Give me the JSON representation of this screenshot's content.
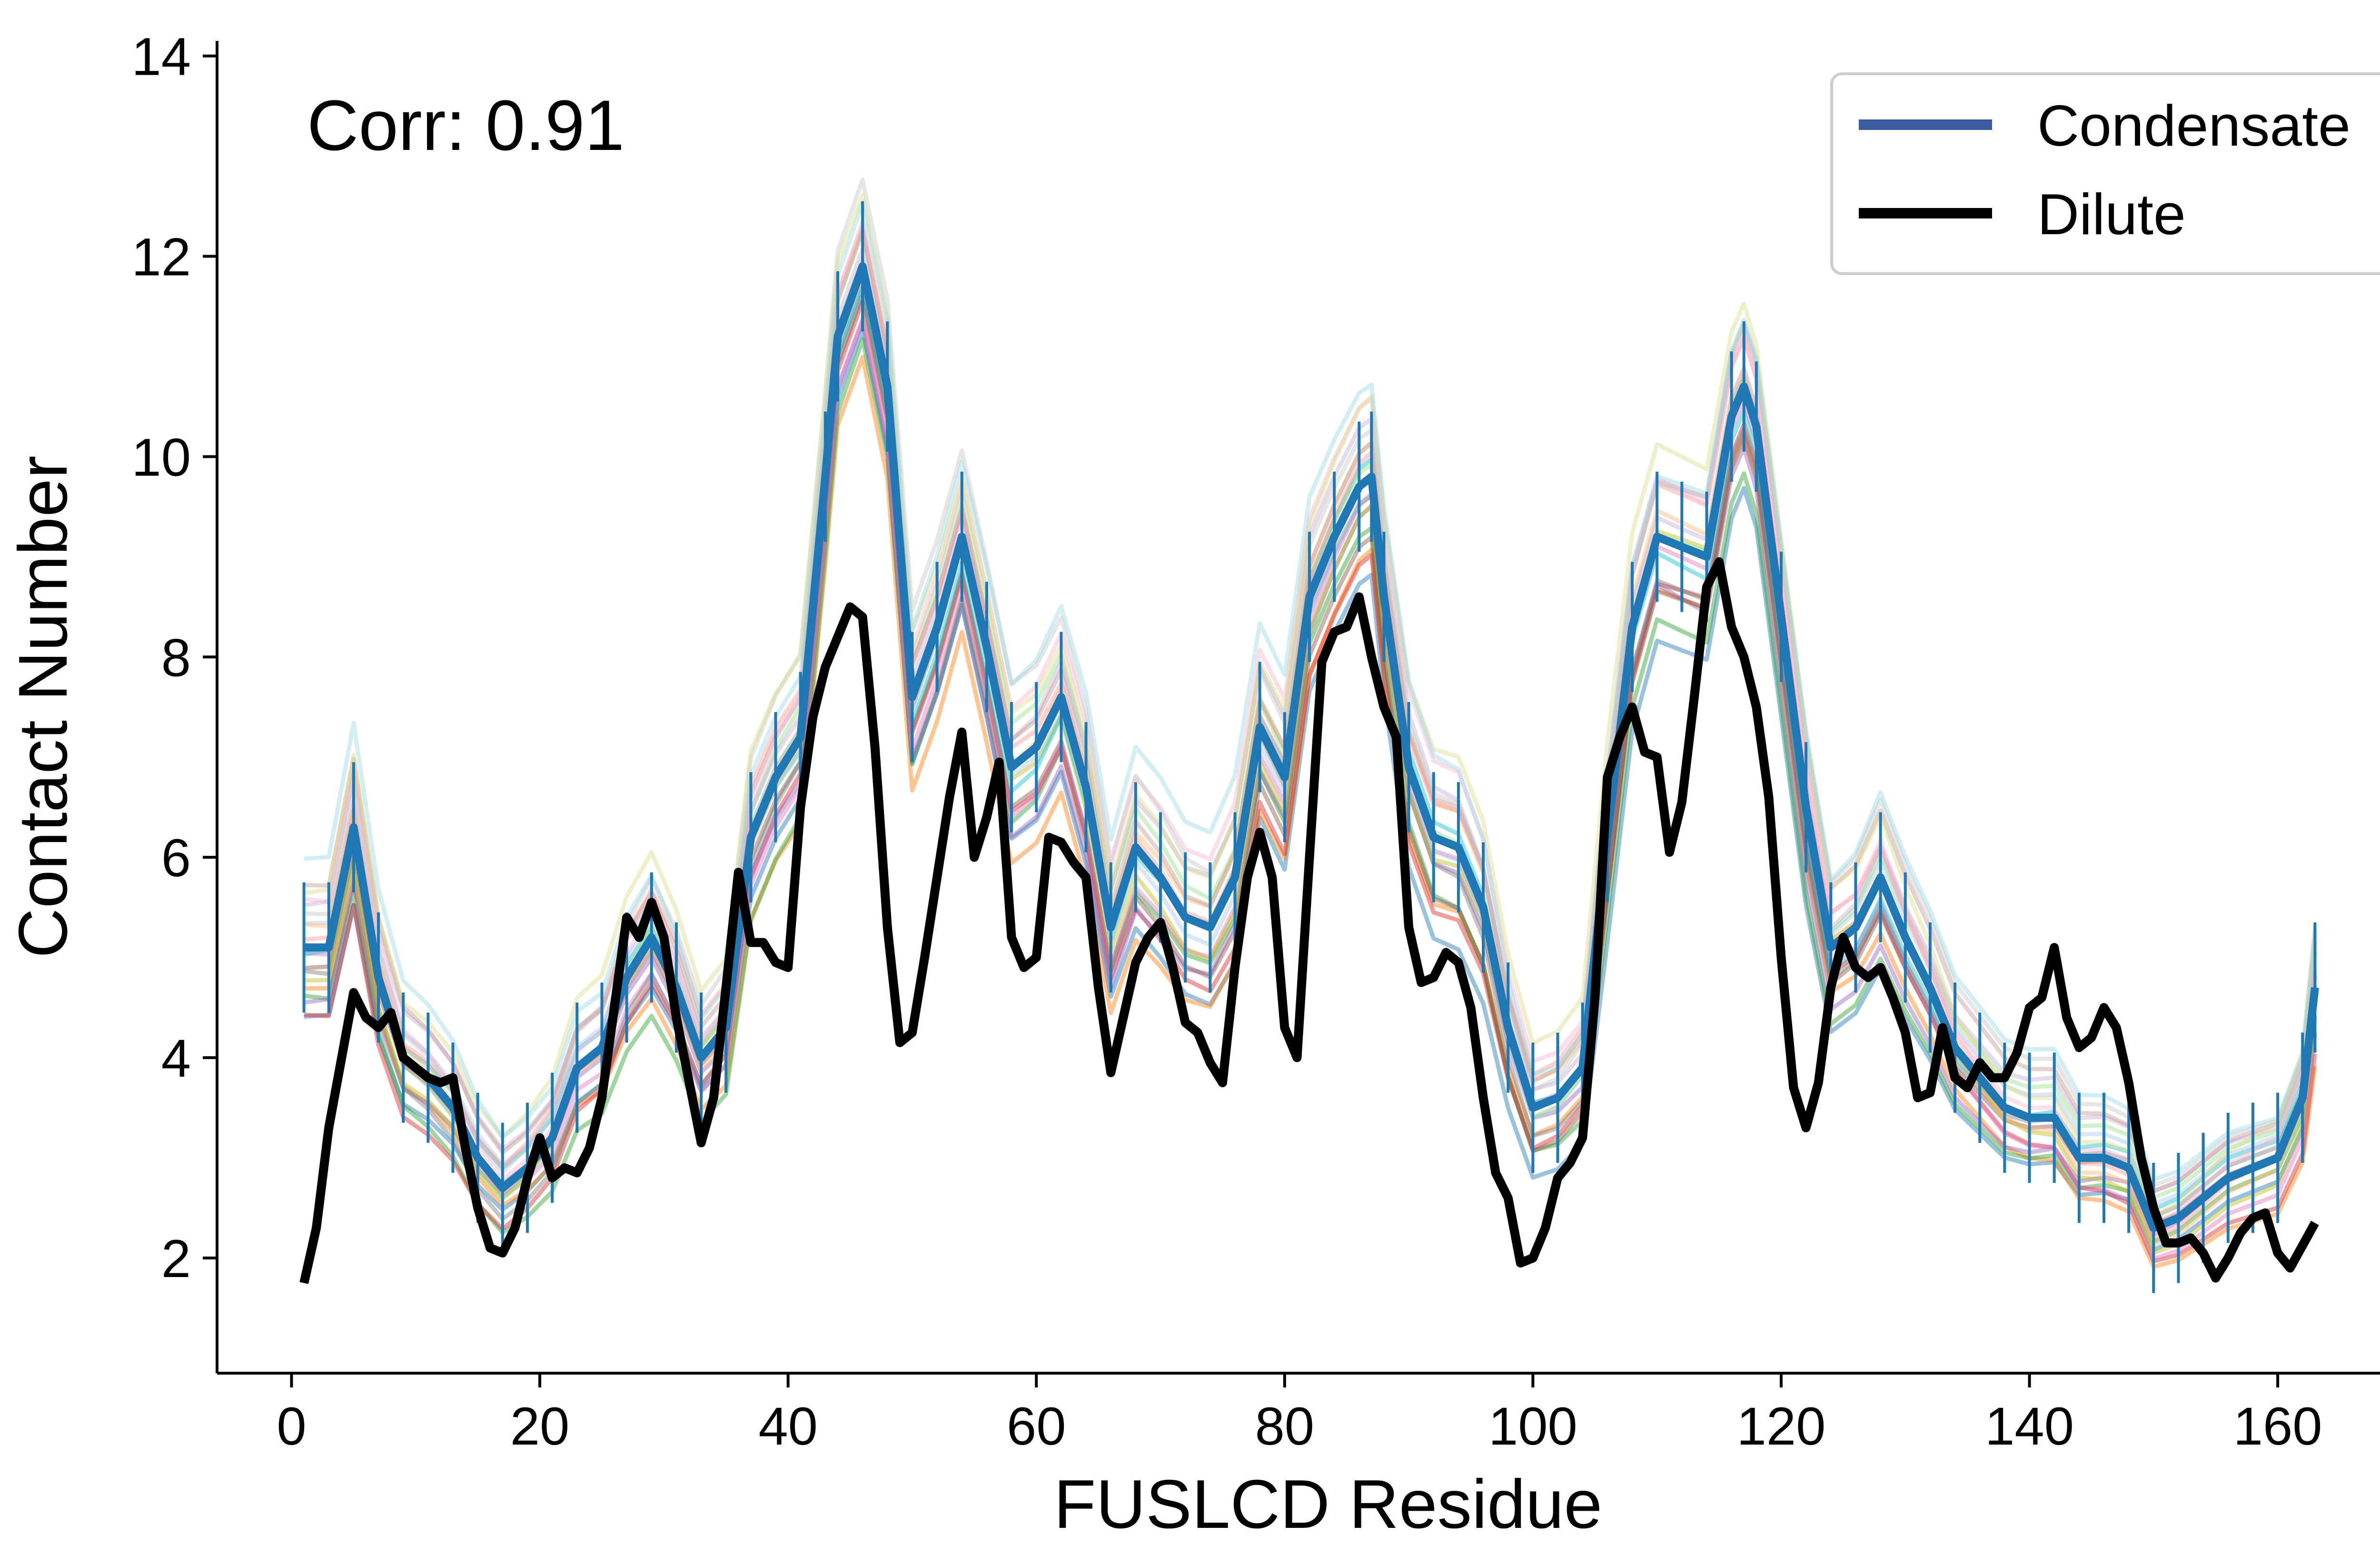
{
  "chart_data": {
    "type": "line",
    "xlabel": "FUSLCD Residue",
    "ylabel": "Contact Number",
    "xlim": [
      -6,
      171
    ],
    "ylim": [
      0.85,
      14.15
    ],
    "xticks": [
      0,
      20,
      40,
      60,
      80,
      100,
      120,
      140,
      160
    ],
    "yticks": [
      2,
      4,
      6,
      8,
      10,
      12,
      14
    ],
    "xtick_labels": [
      "0",
      "20",
      "40",
      "60",
      "80",
      "100",
      "120",
      "140",
      "160"
    ],
    "ytick_labels": [
      "2",
      "4",
      "6",
      "8",
      "10",
      "12",
      "14"
    ],
    "grid": false,
    "legend_position": "top-right",
    "annotation": "Corr: 0.91",
    "legend": [
      {
        "label": "Condensate",
        "color": "#3a5ba0"
      },
      {
        "label": "Dilute",
        "color": "#000000"
      }
    ],
    "condensate_mean": {
      "name": "Condensate",
      "color": "#1f77b4",
      "error_bar_halfwidth": 0.65,
      "x": [
        1,
        3,
        5,
        7,
        9,
        11,
        13,
        15,
        17,
        19,
        21,
        23,
        25,
        27,
        29,
        31,
        33,
        35,
        37,
        39,
        41,
        43,
        44,
        46,
        48,
        50,
        52,
        54,
        56,
        58,
        60,
        62,
        64,
        66,
        68,
        70,
        72,
        74,
        76,
        78,
        80,
        82,
        84,
        86,
        87,
        88,
        90,
        92,
        94,
        96,
        98,
        100,
        102,
        104,
        106,
        108,
        110,
        112,
        114,
        116,
        117,
        118,
        120,
        122,
        124,
        126,
        128,
        130,
        132,
        134,
        136,
        138,
        140,
        142,
        144,
        146,
        148,
        150,
        152,
        154,
        156,
        158,
        160,
        162,
        163
      ],
      "y": [
        5.1,
        5.1,
        6.3,
        4.8,
        4.0,
        3.8,
        3.5,
        3.0,
        2.7,
        2.9,
        3.2,
        3.9,
        4.1,
        4.8,
        5.2,
        4.7,
        4.0,
        4.3,
        6.2,
        6.8,
        7.2,
        9.8,
        11.2,
        11.9,
        10.7,
        7.6,
        8.3,
        9.2,
        8.1,
        6.9,
        7.1,
        7.6,
        6.7,
        5.3,
        6.1,
        5.8,
        5.4,
        5.3,
        5.8,
        7.3,
        6.8,
        8.6,
        9.2,
        9.7,
        9.8,
        8.6,
        6.9,
        6.2,
        6.1,
        5.5,
        4.3,
        3.5,
        3.6,
        3.9,
        6.2,
        8.3,
        9.2,
        9.1,
        9.0,
        10.4,
        10.7,
        10.3,
        8.4,
        6.5,
        5.1,
        5.3,
        5.8,
        5.2,
        4.7,
        4.1,
        3.8,
        3.5,
        3.4,
        3.4,
        3.0,
        3.0,
        2.9,
        2.3,
        2.4,
        2.6,
        2.8,
        2.9,
        3.0,
        3.6,
        4.7
      ]
    },
    "dilute": {
      "name": "Dilute",
      "color": "#000000",
      "x": [
        1,
        2,
        3,
        5,
        6,
        7,
        8,
        9,
        11,
        12,
        13,
        14,
        15,
        16,
        17,
        18,
        19,
        20,
        21,
        22,
        23,
        24,
        25,
        27,
        28,
        29,
        30,
        31,
        33,
        34,
        35,
        36,
        37,
        38,
        39,
        40,
        41,
        42,
        43,
        45,
        46,
        47,
        48,
        49,
        50,
        51,
        53,
        54,
        55,
        56,
        57,
        58,
        59,
        60,
        61,
        62,
        63,
        64,
        65,
        66,
        67,
        68,
        69,
        70,
        71,
        72,
        73,
        74,
        75,
        76,
        77,
        78,
        79,
        80,
        81,
        82,
        83,
        84,
        85,
        86,
        87,
        88,
        89,
        90,
        91,
        92,
        93,
        94,
        95,
        96,
        97,
        98,
        99,
        100,
        101,
        102,
        103,
        104,
        105,
        106,
        107,
        108,
        109,
        110,
        111,
        112,
        113,
        114,
        115,
        116,
        117,
        118,
        119,
        120,
        121,
        122,
        123,
        124,
        125,
        126,
        127,
        128,
        129,
        130,
        131,
        132,
        133,
        134,
        135,
        136,
        137,
        138,
        139,
        140,
        141,
        142,
        143,
        144,
        145,
        146,
        147,
        148,
        149,
        150,
        151,
        152,
        153,
        154,
        155,
        156,
        157,
        158,
        159,
        160,
        161,
        163
      ],
      "y": [
        1.75,
        2.3,
        3.3,
        4.65,
        4.4,
        4.3,
        4.45,
        4.0,
        3.8,
        3.75,
        3.8,
        3.1,
        2.5,
        2.1,
        2.05,
        2.3,
        2.8,
        3.2,
        2.8,
        2.9,
        2.85,
        3.1,
        3.6,
        5.4,
        5.2,
        5.55,
        5.2,
        4.4,
        3.15,
        3.6,
        4.7,
        5.85,
        5.15,
        5.15,
        4.95,
        4.9,
        6.5,
        7.4,
        7.9,
        8.5,
        8.4,
        7.1,
        5.3,
        4.15,
        4.25,
        5.0,
        6.6,
        7.25,
        6.0,
        6.4,
        6.95,
        5.2,
        4.9,
        5.0,
        6.2,
        6.15,
        5.95,
        5.8,
        4.7,
        3.85,
        4.4,
        4.95,
        5.2,
        5.35,
        4.9,
        4.35,
        4.25,
        3.95,
        3.75,
        4.9,
        5.8,
        6.25,
        5.8,
        4.3,
        4.0,
        6.0,
        7.95,
        8.25,
        8.3,
        8.6,
        8.0,
        7.5,
        7.2,
        5.3,
        4.75,
        4.8,
        5.05,
        4.95,
        4.5,
        3.6,
        2.85,
        2.6,
        1.95,
        2.0,
        2.3,
        2.8,
        2.95,
        3.2,
        4.6,
        6.8,
        7.2,
        7.5,
        7.05,
        7.0,
        6.05,
        6.55,
        7.6,
        8.7,
        8.95,
        8.3,
        8.0,
        7.5,
        6.6,
        5.0,
        3.7,
        3.3,
        3.75,
        4.7,
        5.2,
        4.9,
        4.8,
        4.9,
        4.6,
        4.25,
        3.6,
        3.65,
        4.3,
        3.8,
        3.7,
        3.95,
        3.8,
        3.8,
        4.05,
        4.5,
        4.6,
        5.1,
        4.4,
        4.1,
        4.2,
        4.5,
        4.3,
        3.75,
        3.0,
        2.5,
        2.15,
        2.15,
        2.2,
        2.05,
        1.8,
        2.0,
        2.25,
        2.4,
        2.45,
        2.05,
        1.9,
        2.35
      ]
    },
    "replicate_count": 20,
    "replicate_colors": [
      "#1f77b4",
      "#ff7f0e",
      "#2ca02c",
      "#d62728",
      "#9467bd",
      "#8c564b",
      "#e377c2",
      "#7f7f7f",
      "#bcbd22",
      "#17becf",
      "#aec7e8",
      "#ffbb78",
      "#98df8a",
      "#ff9896",
      "#c5b0d5",
      "#c49c94",
      "#f7b6d2",
      "#c7c7c7",
      "#dbdb8d",
      "#9edae5"
    ]
  }
}
